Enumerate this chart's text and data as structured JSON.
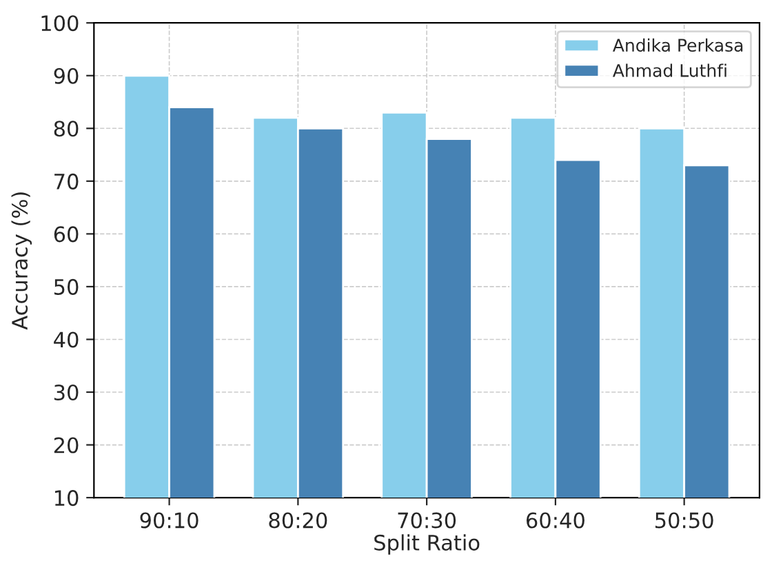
{
  "chart_data": {
    "type": "bar",
    "xlabel": "Split Ratio",
    "ylabel": "Accuracy (%)",
    "categories": [
      "90:10",
      "80:20",
      "70:30",
      "60:40",
      "50:50"
    ],
    "series": [
      {
        "name": "Andika Perkasa",
        "color": "#87ceeb",
        "values": [
          90,
          82,
          83,
          82,
          80
        ]
      },
      {
        "name": "Ahmad Luthfi",
        "color": "#4682b4",
        "values": [
          84,
          80,
          78,
          74,
          73
        ]
      }
    ],
    "ylim": [
      10,
      100
    ],
    "yticks": [
      10,
      20,
      30,
      40,
      50,
      60,
      70,
      80,
      90,
      100
    ],
    "grid": true,
    "legend": "top right"
  }
}
